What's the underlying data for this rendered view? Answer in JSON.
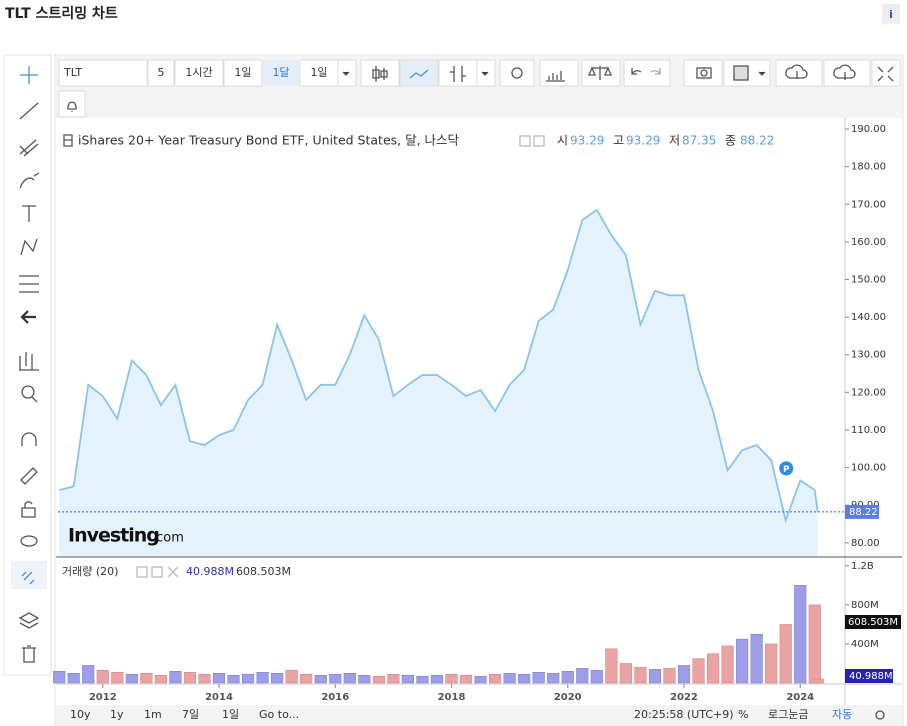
{
  "header": {
    "title": "TLT 스트리밍 차트",
    "info": "i"
  },
  "toolbar": {
    "items": [
      "TLT",
      "5",
      "1시간",
      "1일",
      "1달",
      "1일"
    ]
  },
  "bottom_bar": {
    "items": [
      "10y",
      "1y",
      "1m",
      "7일",
      "1일",
      "Go to...",
      "20:25:58 (UTC+9)",
      "%",
      "로그눈금",
      "자동"
    ]
  },
  "watermark": [
    "Investing",
    ".com"
  ],
  "chart_data": [
    {
      "type": "area",
      "title": "iShares 20+ Year Treasury Bond ETF, United States, 달, 나스닥",
      "ohlc": [
        {
          "label": "시",
          "value": 93.29
        },
        {
          "label": "고",
          "value": 93.29
        },
        {
          "label": "저",
          "value": 87.35
        },
        {
          "label": "종",
          "value": 88.22
        }
      ],
      "marker": "P",
      "x": [
        2011.25,
        2011.5,
        2011.75,
        2012,
        2012.25,
        2012.5,
        2012.75,
        2013,
        2013.25,
        2013.5,
        2013.75,
        2014,
        2014.25,
        2014.5,
        2014.75,
        2015,
        2015.25,
        2015.5,
        2015.75,
        2016,
        2016.25,
        2016.5,
        2016.75,
        2017,
        2017.25,
        2017.5,
        2017.75,
        2018,
        2018.25,
        2018.5,
        2018.75,
        2019,
        2019.25,
        2019.5,
        2019.75,
        2020,
        2020.25,
        2020.5,
        2020.75,
        2021,
        2021.25,
        2021.5,
        2021.75,
        2022,
        2022.25,
        2022.5,
        2022.75,
        2023,
        2023.25,
        2023.5,
        2023.75,
        2024,
        2024.25,
        2024.3
      ],
      "series": [
        {
          "name": "TLT",
          "color": "#8cc2ec",
          "fill": "#e4f2fc",
          "values": [
            94,
            95,
            122,
            119,
            113,
            128.5,
            124.6,
            116.6,
            122,
            107,
            106,
            108.6,
            110,
            118,
            122,
            138,
            128.6,
            118,
            122,
            122,
            130,
            140.5,
            134,
            119,
            122,
            124.6,
            124.6,
            122,
            119,
            120.6,
            115,
            122,
            126,
            139,
            142,
            152.5,
            165.8,
            168.5,
            161.8,
            156.5,
            138,
            147,
            145.8,
            145.8,
            126,
            115,
            99.3,
            104.6,
            106,
            102,
            86,
            96.6,
            94,
            88.22
          ]
        }
      ],
      "xlim": [
        2011.23,
        2024.77
      ],
      "xticks": [
        2012,
        2014,
        2016,
        2018,
        2020,
        2022,
        2024
      ],
      "ylim": [
        76.5,
        192.4
      ],
      "yticks": [
        {
          "value": 80,
          "label": "80.00"
        },
        {
          "value": 90,
          "label": "90.00"
        },
        {
          "value": 100,
          "label": "100.00"
        },
        {
          "value": 110,
          "label": "110.00"
        },
        {
          "value": 120,
          "label": "120.00"
        },
        {
          "value": 130,
          "label": "130.00"
        },
        {
          "value": 140,
          "label": "140.00"
        },
        {
          "value": 150,
          "label": "150.00"
        },
        {
          "value": 160,
          "label": "160.00"
        },
        {
          "value": 170,
          "label": "170.00"
        },
        {
          "value": 180,
          "label": "180.00"
        },
        {
          "value": 190,
          "label": "190.00"
        }
      ],
      "grid": false,
      "last_line_color": "#3b5fc9"
    },
    {
      "type": "bar",
      "title": "거래량 (20)",
      "legend_values": [
        "40.988M",
        "608.503M"
      ],
      "up_color": "#9d9de8",
      "down_color": "#e9a3a3",
      "values": [
        120,
        100,
        180,
        130,
        110,
        90,
        100,
        80,
        120,
        110,
        90,
        100,
        80,
        90,
        110,
        100,
        130,
        90,
        80,
        90,
        100,
        80,
        70,
        90,
        80,
        70,
        80,
        90,
        80,
        70,
        90,
        100,
        90,
        110,
        100,
        120,
        150,
        130,
        350,
        200,
        160,
        140,
        150,
        180,
        250,
        300,
        380,
        450,
        500,
        400,
        600,
        1000,
        800,
        40.988
      ],
      "ylim": [
        0,
        1280
      ],
      "yticks": [
        {
          "value": 400,
          "label": "400M"
        },
        {
          "value": 800,
          "label": "800M"
        },
        {
          "value": 1200,
          "label": "1.2B"
        }
      ]
    }
  ]
}
